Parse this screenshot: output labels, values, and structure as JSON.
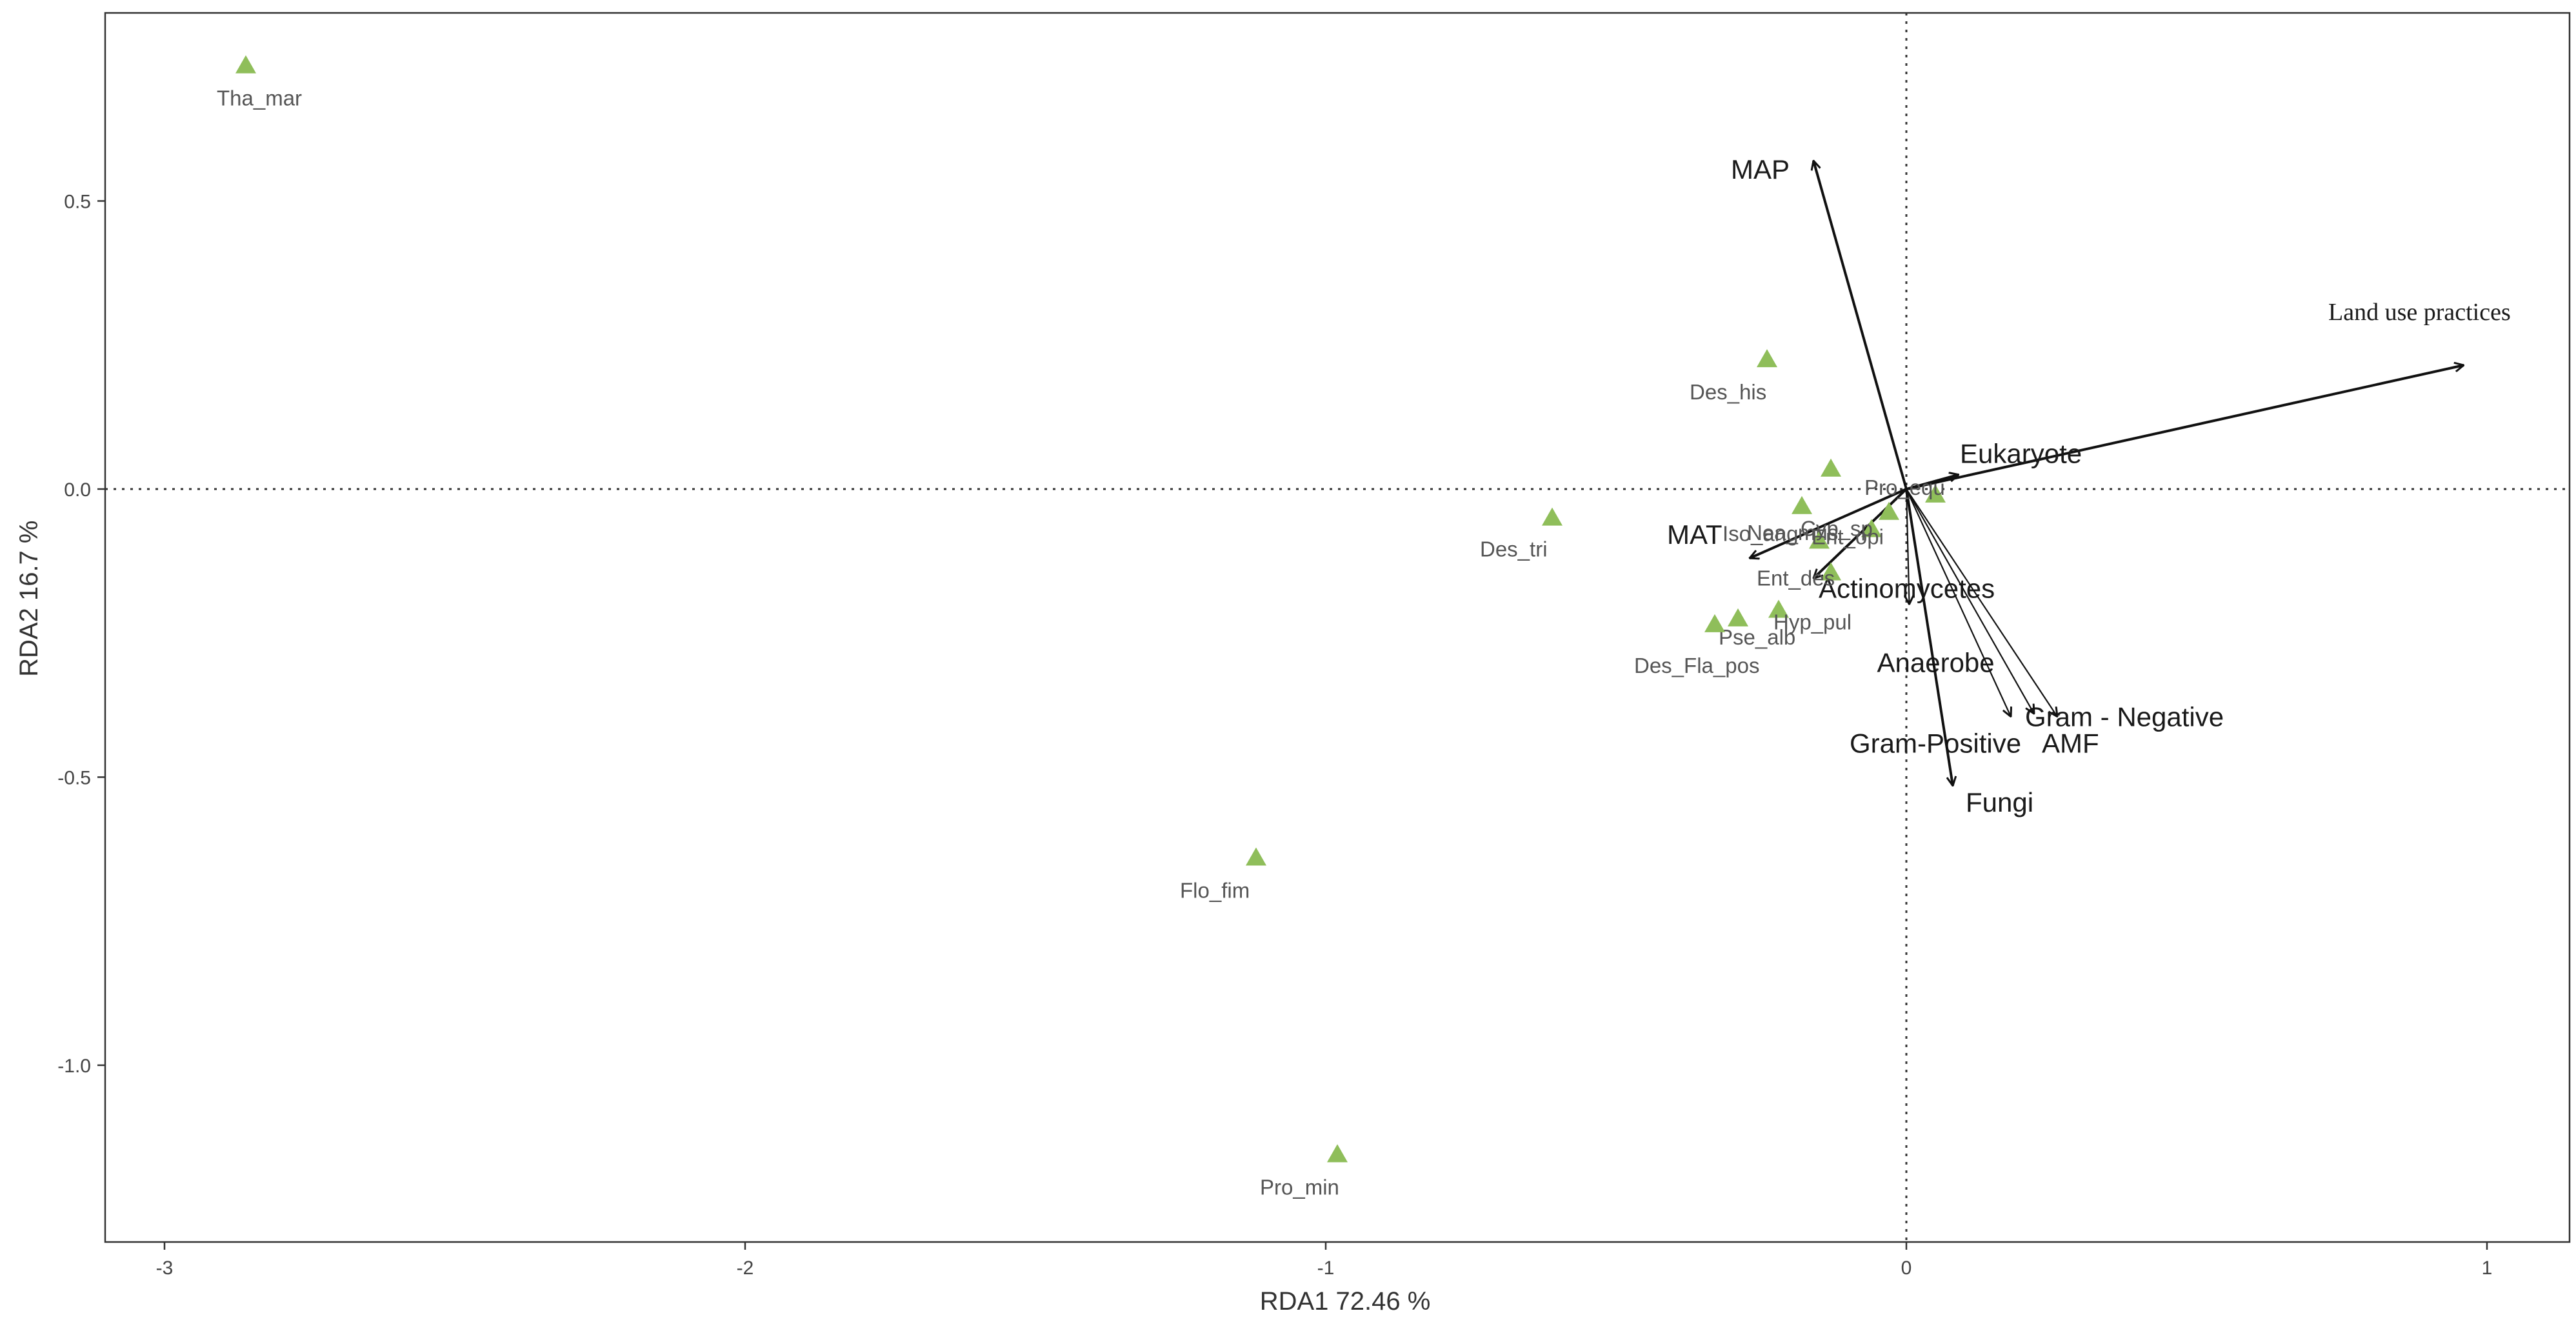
{
  "chart_data": {
    "type": "scatter",
    "subtype": "rda-biplot",
    "title": "",
    "xlabel": "RDA1 72.46 %",
    "ylabel": "RDA2 16.7 %",
    "xlim": [
      -3.1,
      1.15
    ],
    "ylim": [
      -1.3,
      0.77
    ],
    "xticks": [
      -3,
      -2,
      -1,
      0,
      1
    ],
    "yticks": [
      -1.0,
      -0.5,
      0.0,
      0.5
    ],
    "xtick_labels": [
      "-3",
      "-2",
      "-1",
      "0",
      "1"
    ],
    "ytick_labels": [
      "-1.0",
      "-0.5",
      "0.0",
      "0.5"
    ],
    "zero_lines": true,
    "grid": false,
    "marker_color": "#8fbe5a",
    "species": [
      {
        "label": "Tha_mar",
        "x": -2.86,
        "y": 0.735
      },
      {
        "label": "Des_his",
        "x": -0.24,
        "y": 0.225
      },
      {
        "label": "Des_tri",
        "x": -0.61,
        "y": -0.05
      },
      {
        "label": "Flo_fim",
        "x": -1.12,
        "y": -0.64
      },
      {
        "label": "Pro_min",
        "x": -0.98,
        "y": -1.155
      },
      {
        "label": "Nea_mus",
        "x": -0.18,
        "y": -0.03
      },
      {
        "label": "Ent_des",
        "x": -0.13,
        "y": -0.145
      },
      {
        "label": "Pse_alb",
        "x": -0.29,
        "y": -0.225
      },
      {
        "label": "Hyp_pul",
        "x": -0.22,
        "y": -0.21
      },
      {
        "label": "Des_Fla_pos",
        "x": -0.33,
        "y": -0.235
      },
      {
        "label": "Iso_ang",
        "x": -0.15,
        "y": -0.09
      },
      {
        "label": "Pro_equ",
        "x": 0.05,
        "y": -0.01
      },
      {
        "label": "Cyp_sp",
        "x": -0.06,
        "y": -0.07
      },
      {
        "label": "Ent_opi",
        "x": -0.03,
        "y": -0.04
      },
      {
        "label": "",
        "x": -0.13,
        "y": 0.035
      }
    ],
    "env_vectors": [
      {
        "label": "Land use practices",
        "x": 0.96,
        "y": 0.215
      },
      {
        "label": "MAP",
        "x": -0.16,
        "y": 0.57
      },
      {
        "label": "Eukaryote",
        "x": 0.09,
        "y": 0.025
      },
      {
        "label": "MAT",
        "x": -0.27,
        "y": -0.12
      },
      {
        "label": "Actinomycetes",
        "x": -0.16,
        "y": -0.155
      },
      {
        "label": "Anaerobe",
        "x": 0.005,
        "y": -0.2
      },
      {
        "label": "Gram - Negative",
        "x": 0.26,
        "y": -0.395
      },
      {
        "label": "AMF",
        "x": 0.22,
        "y": -0.39
      },
      {
        "label": "Gram-Positive",
        "x": 0.18,
        "y": -0.395
      },
      {
        "label": "Fungi",
        "x": 0.08,
        "y": -0.515
      }
    ]
  }
}
